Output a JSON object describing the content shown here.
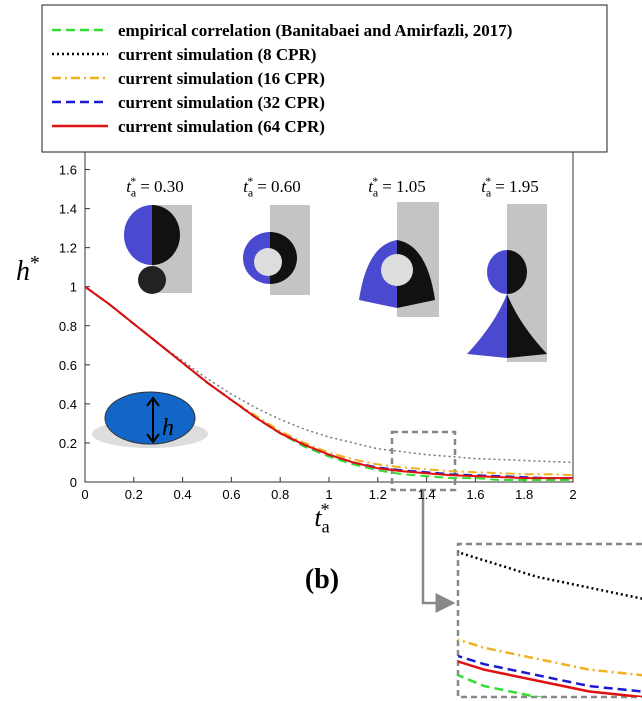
{
  "chart_data": {
    "type": "line",
    "x_label": {
      "symbol": "t",
      "subscript": "a",
      "superscript": "*"
    },
    "y_label": {
      "symbol": "h",
      "superscript": "*"
    },
    "x": [
      0,
      0.1,
      0.2,
      0.3,
      0.4,
      0.5,
      0.6,
      0.7,
      0.8,
      0.9,
      1.0,
      1.1,
      1.2,
      1.3,
      1.4,
      1.5,
      1.6,
      1.7,
      1.8,
      1.9,
      2.0
    ],
    "series": [
      {
        "name": "empirical correlation (Banitabaei and Amirfazli, 2017)",
        "color": "#33dd33",
        "linestyle": "dashed",
        "values": [
          1,
          0.91,
          0.81,
          0.71,
          0.61,
          0.51,
          0.42,
          0.33,
          0.25,
          0.18,
          0.13,
          0.09,
          0.06,
          0.04,
          0.03,
          0.02,
          0.02,
          0.01,
          0.01,
          0.01,
          0.01
        ]
      },
      {
        "name": "current simulation (8 CPR)",
        "color": "#000000",
        "linestyle": "dotted",
        "values": [
          1,
          0.91,
          0.81,
          0.71,
          0.62,
          0.53,
          0.45,
          0.38,
          0.32,
          0.27,
          0.23,
          0.2,
          0.17,
          0.155,
          0.14,
          0.13,
          0.12,
          0.115,
          0.11,
          0.105,
          0.1
        ]
      },
      {
        "name": "current simulation (16 CPR)",
        "color": "#f0b020",
        "linestyle": "dashdot",
        "values": [
          1,
          0.91,
          0.81,
          0.71,
          0.61,
          0.51,
          0.42,
          0.34,
          0.26,
          0.2,
          0.15,
          0.115,
          0.09,
          0.075,
          0.065,
          0.055,
          0.05,
          0.045,
          0.04,
          0.04,
          0.035
        ]
      },
      {
        "name": "current simulation (32 CPR)",
        "color": "#1a1ad0",
        "linestyle": "dashed",
        "values": [
          1,
          0.91,
          0.81,
          0.71,
          0.61,
          0.51,
          0.42,
          0.33,
          0.25,
          0.19,
          0.14,
          0.1,
          0.075,
          0.06,
          0.05,
          0.04,
          0.035,
          0.03,
          0.025,
          0.02,
          0.02
        ]
      },
      {
        "name": "current simulation (64 CPR)",
        "color": "#e01010",
        "linestyle": "solid",
        "values": [
          1,
          0.91,
          0.81,
          0.71,
          0.61,
          0.51,
          0.42,
          0.33,
          0.25,
          0.19,
          0.14,
          0.1,
          0.07,
          0.055,
          0.045,
          0.035,
          0.03,
          0.025,
          0.02,
          0.02,
          0.02
        ]
      }
    ],
    "xlim": [
      0,
      2
    ],
    "xticks": [
      0,
      0.2,
      0.4,
      0.6,
      0.8,
      1,
      1.2,
      1.4,
      1.6,
      1.8,
      2
    ],
    "ylim": [
      0,
      1.7
    ],
    "yticks": [
      0,
      0.2,
      0.4,
      0.6,
      0.8,
      1,
      1.2,
      1.4,
      1.6
    ],
    "grid": false,
    "legend": "top",
    "annotations": [
      {
        "symbol": "t",
        "subscript": "a",
        "superscript": "*",
        "text": "= 0.30"
      },
      {
        "symbol": "t",
        "subscript": "a",
        "superscript": "*",
        "text": "= 0.60"
      },
      {
        "symbol": "t",
        "subscript": "a",
        "superscript": "*",
        "text": "= 1.05"
      },
      {
        "symbol": "t",
        "subscript": "a",
        "superscript": "*",
        "text": "= 1.95"
      }
    ],
    "schematic_label": "h",
    "panel_label": "(b)"
  }
}
